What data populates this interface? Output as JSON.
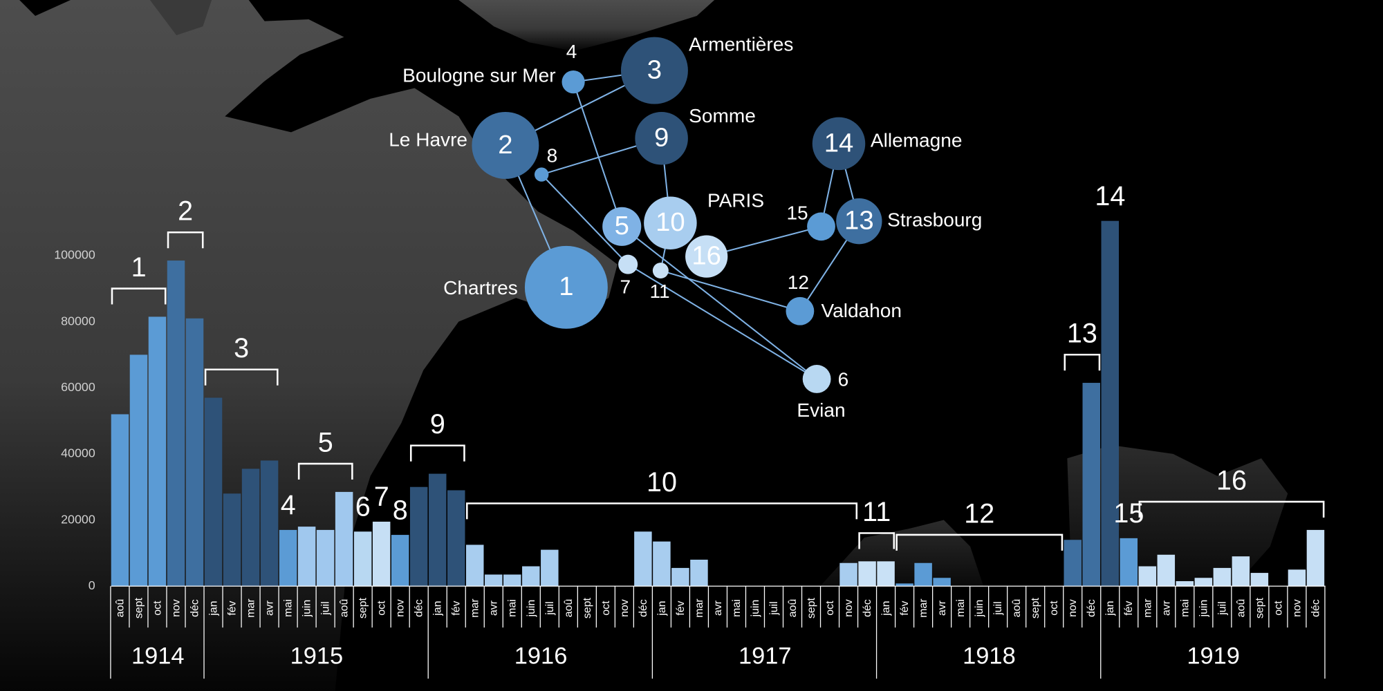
{
  "chart_data": {
    "type": "bar",
    "categories": [
      "aoû",
      "sept",
      "oct",
      "nov",
      "déc",
      "jan",
      "fév",
      "mar",
      "avr",
      "mai",
      "juin",
      "juil",
      "aoû",
      "sept",
      "oct",
      "nov",
      "déc",
      "jan",
      "fév",
      "mar",
      "avr",
      "mai",
      "juin",
      "juil",
      "aoû",
      "sept",
      "oct",
      "nov",
      "déc",
      "jan",
      "fév",
      "mar",
      "avr",
      "mai",
      "juin",
      "juil",
      "aoû",
      "sept",
      "oct",
      "nov",
      "déc",
      "jan",
      "fév",
      "mar",
      "avr",
      "mai",
      "juin",
      "juil",
      "aoû",
      "sept",
      "oct",
      "nov",
      "déc",
      "jan",
      "fév",
      "mar",
      "avr",
      "mai",
      "juin",
      "juil",
      "aoû",
      "sept",
      "oct",
      "nov",
      "déc"
    ],
    "values": [
      52000,
      70000,
      81500,
      98500,
      81000,
      57000,
      28000,
      35500,
      38000,
      17000,
      18000,
      17000,
      28500,
      16500,
      19500,
      15500,
      30000,
      34000,
      29000,
      12500,
      3500,
      3500,
      6000,
      11000,
      0,
      0,
      0,
      0,
      16500,
      13500,
      5500,
      8000,
      0,
      0,
      0,
      0,
      0,
      0,
      0,
      7000,
      7500,
      7500,
      800,
      7000,
      2500,
      0,
      0,
      0,
      0,
      0,
      0,
      14000,
      61500,
      110500,
      14500,
      6000,
      9500,
      1500,
      2500,
      5500,
      9000,
      4000,
      0,
      5000,
      17000
    ],
    "colors": [
      "#5b9bd5",
      "#5b9bd5",
      "#5b9bd5",
      "#3e6fa0",
      "#3e6fa0",
      "#2e5278",
      "#2e5278",
      "#2e5278",
      "#2e5278",
      "#5b9bd5",
      "#a0c8ee",
      "#a0c8ee",
      "#a0c8ee",
      "#b8d8f2",
      "#c6dff5",
      "#5b9bd5",
      "#2e5278",
      "#2e5278",
      "#2e5278",
      "#a8cdef",
      "#a8cdef",
      "#a8cdef",
      "#a8cdef",
      "#a8cdef",
      "#a8cdef",
      "#a8cdef",
      "#a8cdef",
      "#a8cdef",
      "#a8cdef",
      "#a8cdef",
      "#a8cdef",
      "#a8cdef",
      "#a8cdef",
      "#a8cdef",
      "#a8cdef",
      "#a8cdef",
      "#a8cdef",
      "#a8cdef",
      "#a8cdef",
      "#a8cdef",
      "#c9e1f6",
      "#c9e1f6",
      "#5b9bd5",
      "#5b9bd5",
      "#5b9bd5",
      "#5b9bd5",
      "#5b9bd5",
      "#5b9bd5",
      "#5b9bd5",
      "#5b9bd5",
      "#5b9bd5",
      "#3e6fa0",
      "#3e6fa0",
      "#2e5278",
      "#5b9bd5",
      "#c6dff5",
      "#c6dff5",
      "#c6dff5",
      "#c6dff5",
      "#c6dff5",
      "#c6dff5",
      "#c6dff5",
      "#c6dff5",
      "#c6dff5",
      "#c6dff5"
    ],
    "ylim": [
      0,
      120000
    ],
    "yticks": [
      0,
      20000,
      40000,
      60000,
      80000,
      100000
    ],
    "years": [
      {
        "label": "1914",
        "from": 0,
        "to": 4
      },
      {
        "label": "1915",
        "from": 5,
        "to": 16
      },
      {
        "label": "1916",
        "from": 17,
        "to": 28
      },
      {
        "label": "1917",
        "from": 29,
        "to": 40
      },
      {
        "label": "1918",
        "from": 41,
        "to": 52
      },
      {
        "label": "1919",
        "from": 53,
        "to": 64
      }
    ],
    "annotations": [
      {
        "text": "1",
        "from": 0,
        "to": 2
      },
      {
        "text": "2",
        "from": 3,
        "to": 4
      },
      {
        "text": "3",
        "from": 5,
        "to": 8
      },
      {
        "text": "4",
        "from": 9,
        "to": 9
      },
      {
        "text": "5",
        "from": 10,
        "to": 12
      },
      {
        "text": "6",
        "from": 13,
        "to": 13
      },
      {
        "text": "7",
        "from": 14,
        "to": 14
      },
      {
        "text": "8",
        "from": 15,
        "to": 15
      },
      {
        "text": "9",
        "from": 16,
        "to": 18
      },
      {
        "text": "10",
        "from": 19,
        "to": 39
      },
      {
        "text": "11",
        "from": 40,
        "to": 41
      },
      {
        "text": "12",
        "from": 42,
        "to": 50
      },
      {
        "text": "13",
        "from": 51,
        "to": 52
      },
      {
        "text": "14",
        "from": 53,
        "to": 53
      },
      {
        "text": "15",
        "from": 54,
        "to": 54
      },
      {
        "text": "16",
        "from": 55,
        "to": 64
      }
    ]
  },
  "map": {
    "nodes": [
      {
        "number": "1",
        "place": "Chartres",
        "color": "#5b9bd5"
      },
      {
        "number": "2",
        "place": "Le Havre",
        "color": "#3e6fa0"
      },
      {
        "number": "3",
        "place": "Armentières",
        "color": "#2e5278"
      },
      {
        "number": "4",
        "place": "Boulogne sur Mer",
        "color": "#5b9bd5"
      },
      {
        "number": "5",
        "color": "#7fb2e5"
      },
      {
        "number": "6",
        "place": "Evian",
        "color": "#b8d8f2"
      },
      {
        "number": "7",
        "color": "#c6dff5"
      },
      {
        "number": "8",
        "color": "#5b9bd5"
      },
      {
        "number": "9",
        "place": "Somme",
        "color": "#2e5278"
      },
      {
        "number": "10",
        "place": "PARIS",
        "color": "#a8cdef"
      },
      {
        "number": "11",
        "color": "#c9e1f6"
      },
      {
        "number": "12",
        "place": "Valdahon",
        "color": "#5b9bd5"
      },
      {
        "number": "13",
        "place": "Strasbourg",
        "color": "#3e6fa0"
      },
      {
        "number": "14",
        "place": "Allemagne",
        "color": "#2e5278"
      },
      {
        "number": "15",
        "color": "#5b9bd5"
      },
      {
        "number": "16",
        "color": "#c6dff5"
      }
    ]
  }
}
